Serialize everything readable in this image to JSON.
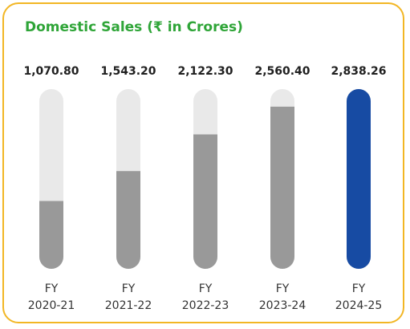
{
  "colors": {
    "border": "#f2b624",
    "title": "#2fa538",
    "track": "#e9e9e9",
    "bar": "#999999",
    "highlight": "#174ba3",
    "text": "#1f1f1f"
  },
  "chart_data": {
    "type": "bar",
    "title": "Domestic Sales (₹ in Crores)",
    "categories": [
      [
        "FY",
        "2020-21"
      ],
      [
        "FY",
        "2021-22"
      ],
      [
        "FY",
        "2022-23"
      ],
      [
        "FY",
        "2023-24"
      ],
      [
        "FY",
        "2024-25"
      ]
    ],
    "values": [
      1070.8,
      1543.2,
      2122.3,
      2560.4,
      2838.26
    ],
    "value_labels": [
      "1,070.80",
      "1,543.20",
      "2,122.30",
      "2,560.40",
      "2,838.26"
    ],
    "ylim": [
      0,
      2838.26
    ],
    "highlight_index": 4,
    "grid": false,
    "legend": "none"
  }
}
